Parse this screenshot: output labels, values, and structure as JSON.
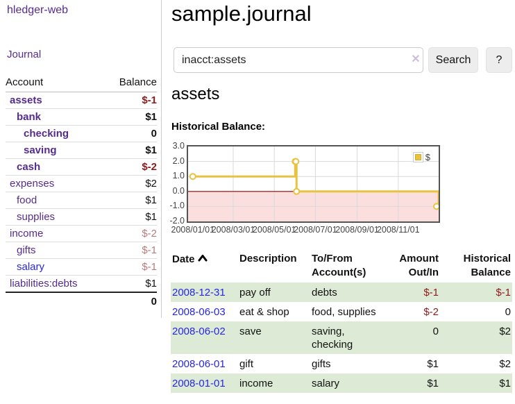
{
  "app": {
    "brand": "hledger-web",
    "nav": {
      "journal": "Journal"
    }
  },
  "sidebar": {
    "accounts_header": {
      "account": "Account",
      "balance": "Balance"
    },
    "accounts": [
      {
        "name": "assets",
        "balance": "$-1",
        "indent": 1,
        "matched": true
      },
      {
        "name": "bank",
        "balance": "$1",
        "indent": 2,
        "matched": true
      },
      {
        "name": "checking",
        "balance": "0",
        "indent": 3,
        "matched": true
      },
      {
        "name": "saving",
        "balance": "$1",
        "indent": 3,
        "matched": true
      },
      {
        "name": "cash",
        "balance": "$-2",
        "indent": 2,
        "matched": true
      },
      {
        "name": "expenses",
        "balance": "$2",
        "indent": 1,
        "matched": false
      },
      {
        "name": "food",
        "balance": "$1",
        "indent": 2,
        "matched": false
      },
      {
        "name": "supplies",
        "balance": "$1",
        "indent": 2,
        "matched": false
      },
      {
        "name": "income",
        "balance": "$-2",
        "indent": 1,
        "matched": false
      },
      {
        "name": "gifts",
        "balance": "$-1",
        "indent": 2,
        "matched": false
      },
      {
        "name": "salary",
        "balance": "$-1",
        "indent": 2,
        "matched": false
      },
      {
        "name": "liabilities:debts",
        "balance": "$1",
        "indent": 1,
        "matched": false
      }
    ],
    "total": "0"
  },
  "main": {
    "title": "sample.journal",
    "search": {
      "value": "inacct:assets",
      "clear_label": "✕",
      "button_label": "Search",
      "help_label": "?"
    },
    "account_heading": "assets",
    "chart_heading": "Historical Balance:"
  },
  "chart_data": {
    "type": "line",
    "title": "Historical Balance",
    "steps": true,
    "series": [
      {
        "name": "$",
        "points": [
          [
            "2008-01-01",
            1
          ],
          [
            "2008-06-01",
            2
          ],
          [
            "2008-06-02",
            2
          ],
          [
            "2008-06-03",
            0
          ],
          [
            "2008-12-31",
            -1
          ]
        ]
      }
    ],
    "xlim": [
      "2007-12-25",
      "2008-12-31"
    ],
    "ylim": [
      -2,
      3
    ],
    "y_ticks": [
      {
        "v": 3,
        "label": "3.0"
      },
      {
        "v": 2,
        "label": "2.0"
      },
      {
        "v": 1,
        "label": "1.0"
      },
      {
        "v": 0,
        "label": "0.0"
      },
      {
        "v": -1,
        "label": "-1.0"
      },
      {
        "v": -2,
        "label": "-2.0"
      }
    ],
    "x_ticks": [
      {
        "d": "2008-01-01",
        "label": "2008/01/01"
      },
      {
        "d": "2008-03-01",
        "label": "2008/03/01"
      },
      {
        "d": "2008-05-01",
        "label": "2008/05/01"
      },
      {
        "d": "2008-07-01",
        "label": "2008/07/01"
      },
      {
        "d": "2008-09-01",
        "label": "2008/09/01"
      },
      {
        "d": "2008-11-01",
        "label": "2008/11/01"
      }
    ],
    "legend": {
      "position": "top-right",
      "label": "$"
    },
    "grid": true,
    "series_color": "#e8c240",
    "marker_fill": "#ffffff",
    "grid_color": "#d9d9d9",
    "zero_line_color": "#a40000",
    "below_zero_fill": "#fbdfdf",
    "frame_color": "#545454"
  },
  "register": {
    "headers": {
      "date": "Date",
      "description": "Description",
      "accounts": "To/From Account(s)",
      "amount": "Amount Out/In",
      "balance": "Historical Balance"
    },
    "rows": [
      {
        "date": "2008-12-31",
        "description": "pay off",
        "accounts": "debts",
        "amount": "$-1",
        "balance": "$-1"
      },
      {
        "date": "2008-06-03",
        "description": "eat & shop",
        "accounts": "food, supplies",
        "amount": "$-2",
        "balance": "0"
      },
      {
        "date": "2008-06-02",
        "description": "save",
        "accounts": "saving, checking",
        "amount": "0",
        "balance": "$2"
      },
      {
        "date": "2008-06-01",
        "description": "gift",
        "accounts": "gifts",
        "amount": "$1",
        "balance": "$2"
      },
      {
        "date": "2008-01-01",
        "description": "income",
        "accounts": "salary",
        "amount": "$1",
        "balance": "$1"
      }
    ]
  },
  "colors": {
    "accent_purple": "#552b90",
    "link_blue": "#2626e6",
    "negative_red": "#8f1a1a",
    "negative_faint": "#ba7b7b",
    "row_green": "#ddebd6",
    "series_yellow": "#e8c240"
  }
}
